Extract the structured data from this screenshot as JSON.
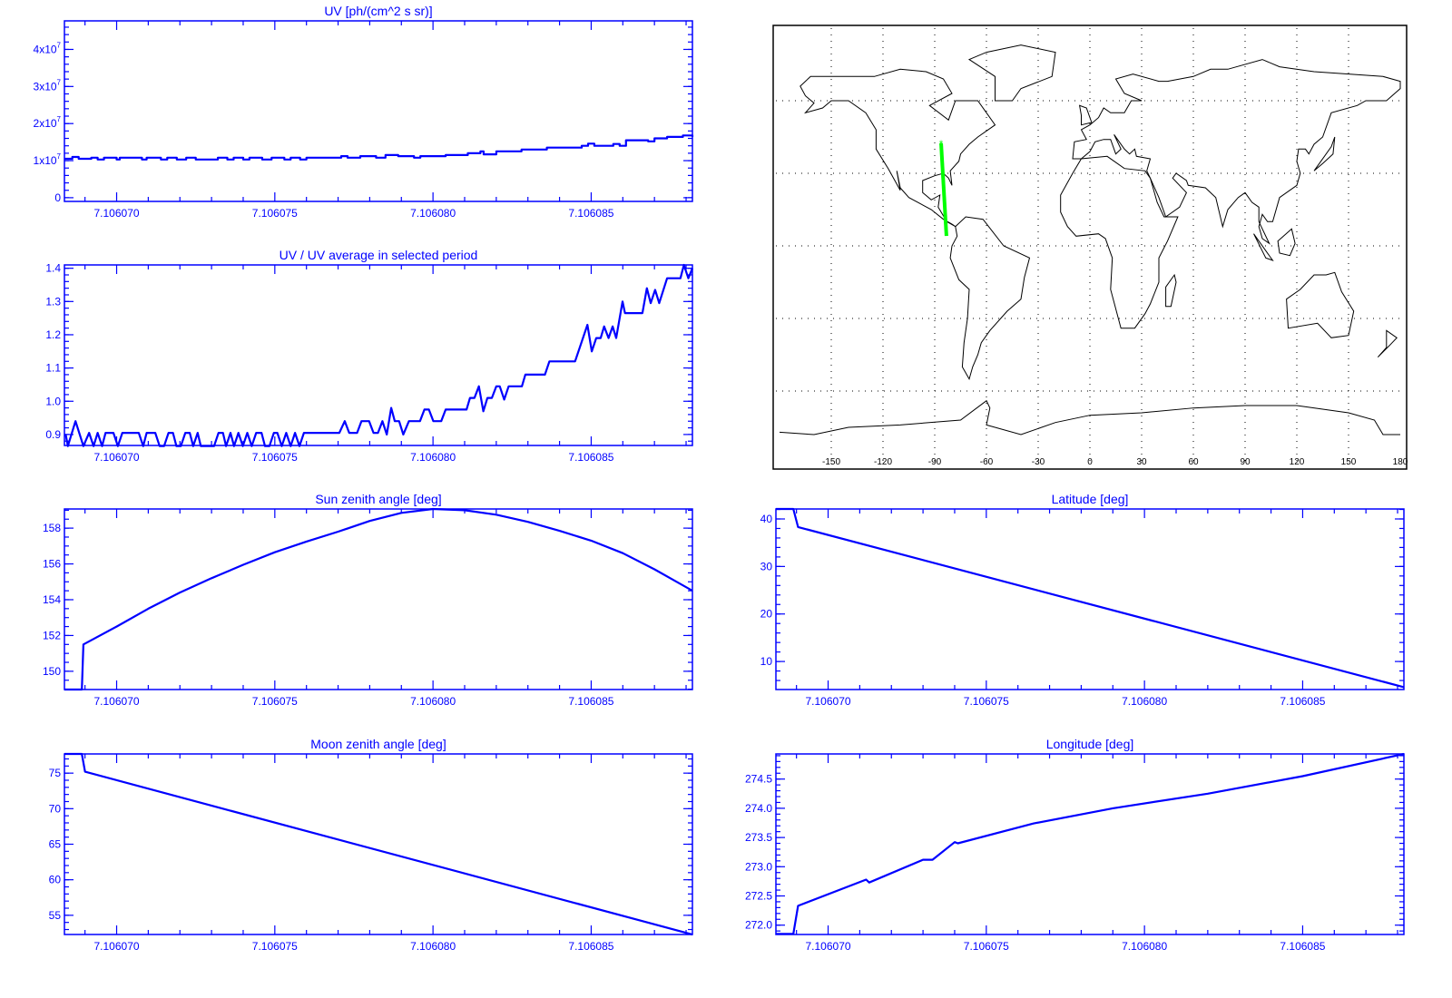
{
  "colors": {
    "plot": "#0000ff",
    "track": "#00ff00",
    "map": "#000000"
  },
  "x_axis_note": "x values are offsets from 7.106070 in units of 1e-6",
  "chart_data": [
    {
      "id": "uv",
      "type": "line",
      "step": true,
      "title": "UV [ph/(cm^2 s sr)]",
      "xlim": [
        -1.65,
        18.2
      ],
      "ylim": [
        -0.1,
        4.77
      ],
      "y_unit_scale": "1e7",
      "xticks": [
        {
          "value": 0,
          "label": "7.106070"
        },
        {
          "value": 5,
          "label": "7.106075"
        },
        {
          "value": 10,
          "label": "7.106080"
        },
        {
          "value": 15,
          "label": "7.106085"
        }
      ],
      "yticks": [
        {
          "value": 0,
          "label": "0",
          "sup": ""
        },
        {
          "value": 1,
          "label": "1x10",
          "sup": "7"
        },
        {
          "value": 2,
          "label": "2x10",
          "sup": "7"
        },
        {
          "value": 3,
          "label": "3x10",
          "sup": "7"
        },
        {
          "value": 4,
          "label": "4x10",
          "sup": "7"
        }
      ],
      "yminor": 0.2,
      "points": [
        [
          -1.65,
          1.05
        ],
        [
          -1.4,
          1.1
        ],
        [
          -1.2,
          1.05
        ],
        [
          -0.8,
          1.08
        ],
        [
          -0.6,
          1.03
        ],
        [
          -0.4,
          1.08
        ],
        [
          0,
          1.03
        ],
        [
          0.1,
          1.08
        ],
        [
          0.8,
          1.03
        ],
        [
          0.95,
          1.08
        ],
        [
          1.4,
          1.03
        ],
        [
          1.6,
          1.08
        ],
        [
          1.9,
          1.03
        ],
        [
          2.2,
          1.08
        ],
        [
          2.5,
          1.03
        ],
        [
          3.2,
          1.08
        ],
        [
          3.5,
          1.03
        ],
        [
          3.7,
          1.08
        ],
        [
          4.0,
          1.03
        ],
        [
          4.2,
          1.08
        ],
        [
          4.6,
          1.03
        ],
        [
          4.9,
          1.08
        ],
        [
          5.3,
          1.03
        ],
        [
          5.5,
          1.08
        ],
        [
          5.8,
          1.03
        ],
        [
          6.0,
          1.08
        ],
        [
          7.1,
          1.12
        ],
        [
          7.3,
          1.08
        ],
        [
          7.7,
          1.12
        ],
        [
          8.2,
          1.08
        ],
        [
          8.5,
          1.15
        ],
        [
          8.9,
          1.12
        ],
        [
          9.4,
          1.08
        ],
        [
          9.6,
          1.12
        ],
        [
          10.4,
          1.15
        ],
        [
          11.1,
          1.2
        ],
        [
          11.5,
          1.25
        ],
        [
          11.6,
          1.17
        ],
        [
          12.0,
          1.25
        ],
        [
          12.8,
          1.3
        ],
        [
          13.6,
          1.35
        ],
        [
          14.7,
          1.4
        ],
        [
          14.9,
          1.46
        ],
        [
          15.1,
          1.4
        ],
        [
          15.7,
          1.45
        ],
        [
          15.9,
          1.4
        ],
        [
          16.1,
          1.55
        ],
        [
          16.8,
          1.52
        ],
        [
          17.0,
          1.6
        ],
        [
          17.4,
          1.64
        ],
        [
          17.9,
          1.68
        ],
        [
          18.2,
          1.64
        ]
      ]
    },
    {
      "id": "ratio",
      "type": "line",
      "step": false,
      "title": "UV / UV average in selected period",
      "xlim": [
        -1.65,
        18.2
      ],
      "ylim": [
        0.867,
        1.41
      ],
      "xticks": [
        {
          "value": 0,
          "label": "7.106070"
        },
        {
          "value": 5,
          "label": "7.106075"
        },
        {
          "value": 10,
          "label": "7.106080"
        },
        {
          "value": 15,
          "label": "7.106085"
        }
      ],
      "yticks": [
        {
          "value": 0.9,
          "label": "0.9"
        },
        {
          "value": 1.0,
          "label": "1.0"
        },
        {
          "value": 1.1,
          "label": "1.1"
        },
        {
          "value": 1.2,
          "label": "1.2"
        },
        {
          "value": 1.3,
          "label": "1.3"
        },
        {
          "value": 1.4,
          "label": "1.4"
        }
      ],
      "yminor": 0.02,
      "points": [
        [
          -1.61,
          0.9
        ],
        [
          -1.54,
          0.865
        ],
        [
          -1.3,
          0.94
        ],
        [
          -1.05,
          0.865
        ],
        [
          -0.87,
          0.905
        ],
        [
          -0.73,
          0.865
        ],
        [
          -0.6,
          0.905
        ],
        [
          -0.46,
          0.865
        ],
        [
          -0.35,
          0.905
        ],
        [
          -0.1,
          0.905
        ],
        [
          0.04,
          0.865
        ],
        [
          0.18,
          0.905
        ],
        [
          0.7,
          0.905
        ],
        [
          0.84,
          0.865
        ],
        [
          0.95,
          0.905
        ],
        [
          1.22,
          0.905
        ],
        [
          1.36,
          0.865
        ],
        [
          1.5,
          0.865
        ],
        [
          1.64,
          0.905
        ],
        [
          1.78,
          0.905
        ],
        [
          1.89,
          0.865
        ],
        [
          2.03,
          0.865
        ],
        [
          2.17,
          0.905
        ],
        [
          2.31,
          0.905
        ],
        [
          2.42,
          0.865
        ],
        [
          2.56,
          0.905
        ],
        [
          2.66,
          0.865
        ],
        [
          3.08,
          0.865
        ],
        [
          3.22,
          0.905
        ],
        [
          3.36,
          0.905
        ],
        [
          3.46,
          0.865
        ],
        [
          3.6,
          0.905
        ],
        [
          3.71,
          0.865
        ],
        [
          3.85,
          0.905
        ],
        [
          3.99,
          0.865
        ],
        [
          4.13,
          0.905
        ],
        [
          4.27,
          0.865
        ],
        [
          4.41,
          0.905
        ],
        [
          4.58,
          0.905
        ],
        [
          4.69,
          0.865
        ],
        [
          4.83,
          0.865
        ],
        [
          4.97,
          0.905
        ],
        [
          5.08,
          0.905
        ],
        [
          5.22,
          0.865
        ],
        [
          5.36,
          0.905
        ],
        [
          5.5,
          0.865
        ],
        [
          5.64,
          0.905
        ],
        [
          5.78,
          0.865
        ],
        [
          5.92,
          0.905
        ],
        [
          7.04,
          0.905
        ],
        [
          7.21,
          0.94
        ],
        [
          7.35,
          0.905
        ],
        [
          7.6,
          0.905
        ],
        [
          7.74,
          0.94
        ],
        [
          7.98,
          0.94
        ],
        [
          8.12,
          0.905
        ],
        [
          8.26,
          0.905
        ],
        [
          8.4,
          0.94
        ],
        [
          8.54,
          0.9
        ],
        [
          8.68,
          0.98
        ],
        [
          8.79,
          0.94
        ],
        [
          8.93,
          0.94
        ],
        [
          9.06,
          0.9
        ],
        [
          9.24,
          0.94
        ],
        [
          9.59,
          0.94
        ],
        [
          9.73,
          0.975
        ],
        [
          9.87,
          0.975
        ],
        [
          10.01,
          0.94
        ],
        [
          10.26,
          0.94
        ],
        [
          10.4,
          0.975
        ],
        [
          11.06,
          0.975
        ],
        [
          11.17,
          1.01
        ],
        [
          11.31,
          1.01
        ],
        [
          11.45,
          1.045
        ],
        [
          11.59,
          0.97
        ],
        [
          11.72,
          1.01
        ],
        [
          11.86,
          1.01
        ],
        [
          12.0,
          1.045
        ],
        [
          12.11,
          1.045
        ],
        [
          12.25,
          1.005
        ],
        [
          12.39,
          1.045
        ],
        [
          12.81,
          1.045
        ],
        [
          12.92,
          1.08
        ],
        [
          13.54,
          1.08
        ],
        [
          13.68,
          1.12
        ],
        [
          14.49,
          1.12
        ],
        [
          14.88,
          1.23
        ],
        [
          15.02,
          1.15
        ],
        [
          15.16,
          1.19
        ],
        [
          15.3,
          1.19
        ],
        [
          15.41,
          1.225
        ],
        [
          15.55,
          1.19
        ],
        [
          15.68,
          1.225
        ],
        [
          15.79,
          1.19
        ],
        [
          15.99,
          1.3
        ],
        [
          16.07,
          1.265
        ],
        [
          16.62,
          1.265
        ],
        [
          16.76,
          1.34
        ],
        [
          16.88,
          1.295
        ],
        [
          17.02,
          1.335
        ],
        [
          17.15,
          1.295
        ],
        [
          17.4,
          1.37
        ],
        [
          17.82,
          1.37
        ],
        [
          17.93,
          1.41
        ],
        [
          18.07,
          1.37
        ],
        [
          18.2,
          1.4
        ]
      ]
    },
    {
      "id": "sun",
      "type": "line",
      "step": false,
      "title": "Sun zenith angle [deg]",
      "xlim": [
        -1.65,
        18.2
      ],
      "ylim": [
        148.98,
        159.07
      ],
      "xticks": [
        {
          "value": 0,
          "label": "7.106070"
        },
        {
          "value": 5,
          "label": "7.106075"
        },
        {
          "value": 10,
          "label": "7.106080"
        },
        {
          "value": 15,
          "label": "7.106085"
        }
      ],
      "yticks": [
        {
          "value": 150,
          "label": "150"
        },
        {
          "value": 152,
          "label": "152"
        },
        {
          "value": 154,
          "label": "154"
        },
        {
          "value": 156,
          "label": "156"
        },
        {
          "value": 158,
          "label": "158"
        }
      ],
      "yminor": 0.5,
      "points": [
        [
          -1.65,
          148.98
        ],
        [
          -1.1,
          148.98
        ],
        [
          -1.05,
          151.5
        ],
        [
          0,
          152.5
        ],
        [
          1,
          153.5
        ],
        [
          2,
          154.4
        ],
        [
          3,
          155.2
        ],
        [
          4,
          155.95
        ],
        [
          5,
          156.65
        ],
        [
          6,
          157.25
        ],
        [
          7,
          157.8
        ],
        [
          8,
          158.4
        ],
        [
          9,
          158.85
        ],
        [
          10,
          159.07
        ],
        [
          11,
          159.0
        ],
        [
          12,
          158.75
        ],
        [
          13,
          158.35
        ],
        [
          14,
          157.85
        ],
        [
          15,
          157.3
        ],
        [
          16,
          156.6
        ],
        [
          17,
          155.7
        ],
        [
          18.2,
          154.5
        ]
      ]
    },
    {
      "id": "moon",
      "type": "line",
      "step": false,
      "title": "Moon zenith angle [deg]",
      "xlim": [
        -1.65,
        18.2
      ],
      "ylim": [
        52.3,
        77.7
      ],
      "xticks": [
        {
          "value": 0,
          "label": "7.106070"
        },
        {
          "value": 5,
          "label": "7.106075"
        },
        {
          "value": 10,
          "label": "7.106080"
        },
        {
          "value": 15,
          "label": "7.106085"
        }
      ],
      "yticks": [
        {
          "value": 55,
          "label": "55"
        },
        {
          "value": 60,
          "label": "60"
        },
        {
          "value": 65,
          "label": "65"
        },
        {
          "value": 70,
          "label": "70"
        },
        {
          "value": 75,
          "label": "75"
        }
      ],
      "yminor": 1,
      "points": [
        [
          -1.65,
          77.7
        ],
        [
          -1.1,
          77.7
        ],
        [
          -1.0,
          75.2
        ],
        [
          18.2,
          52.3
        ]
      ]
    },
    {
      "id": "lat",
      "type": "line",
      "step": false,
      "title": "Latitude [deg]",
      "xlim": [
        -1.65,
        18.2
      ],
      "ylim": [
        4.1,
        42.1
      ],
      "xticks": [
        {
          "value": 0,
          "label": "7.106070"
        },
        {
          "value": 5,
          "label": "7.106075"
        },
        {
          "value": 10,
          "label": "7.106080"
        },
        {
          "value": 15,
          "label": "7.106085"
        }
      ],
      "yticks": [
        {
          "value": 10,
          "label": "10"
        },
        {
          "value": 20,
          "label": "20"
        },
        {
          "value": 30,
          "label": "30"
        },
        {
          "value": 40,
          "label": "40"
        }
      ],
      "yminor": 2,
      "points": [
        [
          -1.65,
          42.1
        ],
        [
          -1.1,
          42.1
        ],
        [
          -0.95,
          38.3
        ],
        [
          18.2,
          4.6
        ]
      ]
    },
    {
      "id": "lon",
      "type": "line",
      "step": false,
      "title": "Longitude [deg]",
      "xlim": [
        -1.65,
        18.2
      ],
      "ylim": [
        271.84,
        274.93
      ],
      "xticks": [
        {
          "value": 0,
          "label": "7.106070"
        },
        {
          "value": 5,
          "label": "7.106075"
        },
        {
          "value": 10,
          "label": "7.106080"
        },
        {
          "value": 15,
          "label": "7.106085"
        }
      ],
      "yticks": [
        {
          "value": 272.0,
          "label": "272.0"
        },
        {
          "value": 272.5,
          "label": "272.5"
        },
        {
          "value": 273.0,
          "label": "273.0"
        },
        {
          "value": 273.5,
          "label": "273.5"
        },
        {
          "value": 274.0,
          "label": "274.0"
        },
        {
          "value": 274.5,
          "label": "274.5"
        }
      ],
      "yminor": 0.1,
      "points": [
        [
          -1.65,
          271.85
        ],
        [
          -1.1,
          271.85
        ],
        [
          -0.95,
          272.33
        ],
        [
          1.2,
          272.78
        ],
        [
          1.3,
          272.73
        ],
        [
          3.0,
          273.12
        ],
        [
          3.3,
          273.12
        ],
        [
          4.0,
          273.42
        ],
        [
          4.1,
          273.4
        ],
        [
          6.5,
          273.74
        ],
        [
          9.0,
          274.0
        ],
        [
          12,
          274.25
        ],
        [
          15,
          274.55
        ],
        [
          18.2,
          274.93
        ]
      ]
    }
  ],
  "map": {
    "xticks": [
      {
        "value": -150,
        "label": "-150"
      },
      {
        "value": -120,
        "label": "-120"
      },
      {
        "value": -90,
        "label": "-90"
      },
      {
        "value": -60,
        "label": "-60"
      },
      {
        "value": -30,
        "label": "-30"
      },
      {
        "value": 0,
        "label": "0"
      },
      {
        "value": 30,
        "label": "30"
      },
      {
        "value": 60,
        "label": "60"
      },
      {
        "value": 90,
        "label": "90"
      },
      {
        "value": 120,
        "label": "120"
      },
      {
        "value": 150,
        "label": "150"
      },
      {
        "value": 180,
        "label": "180"
      }
    ],
    "lat_grid": [
      -60,
      -30,
      0,
      30,
      60
    ],
    "track": [
      [
        -86.3,
        42.4
      ],
      [
        -83.2,
        4.1
      ]
    ],
    "start_marker": "*"
  }
}
